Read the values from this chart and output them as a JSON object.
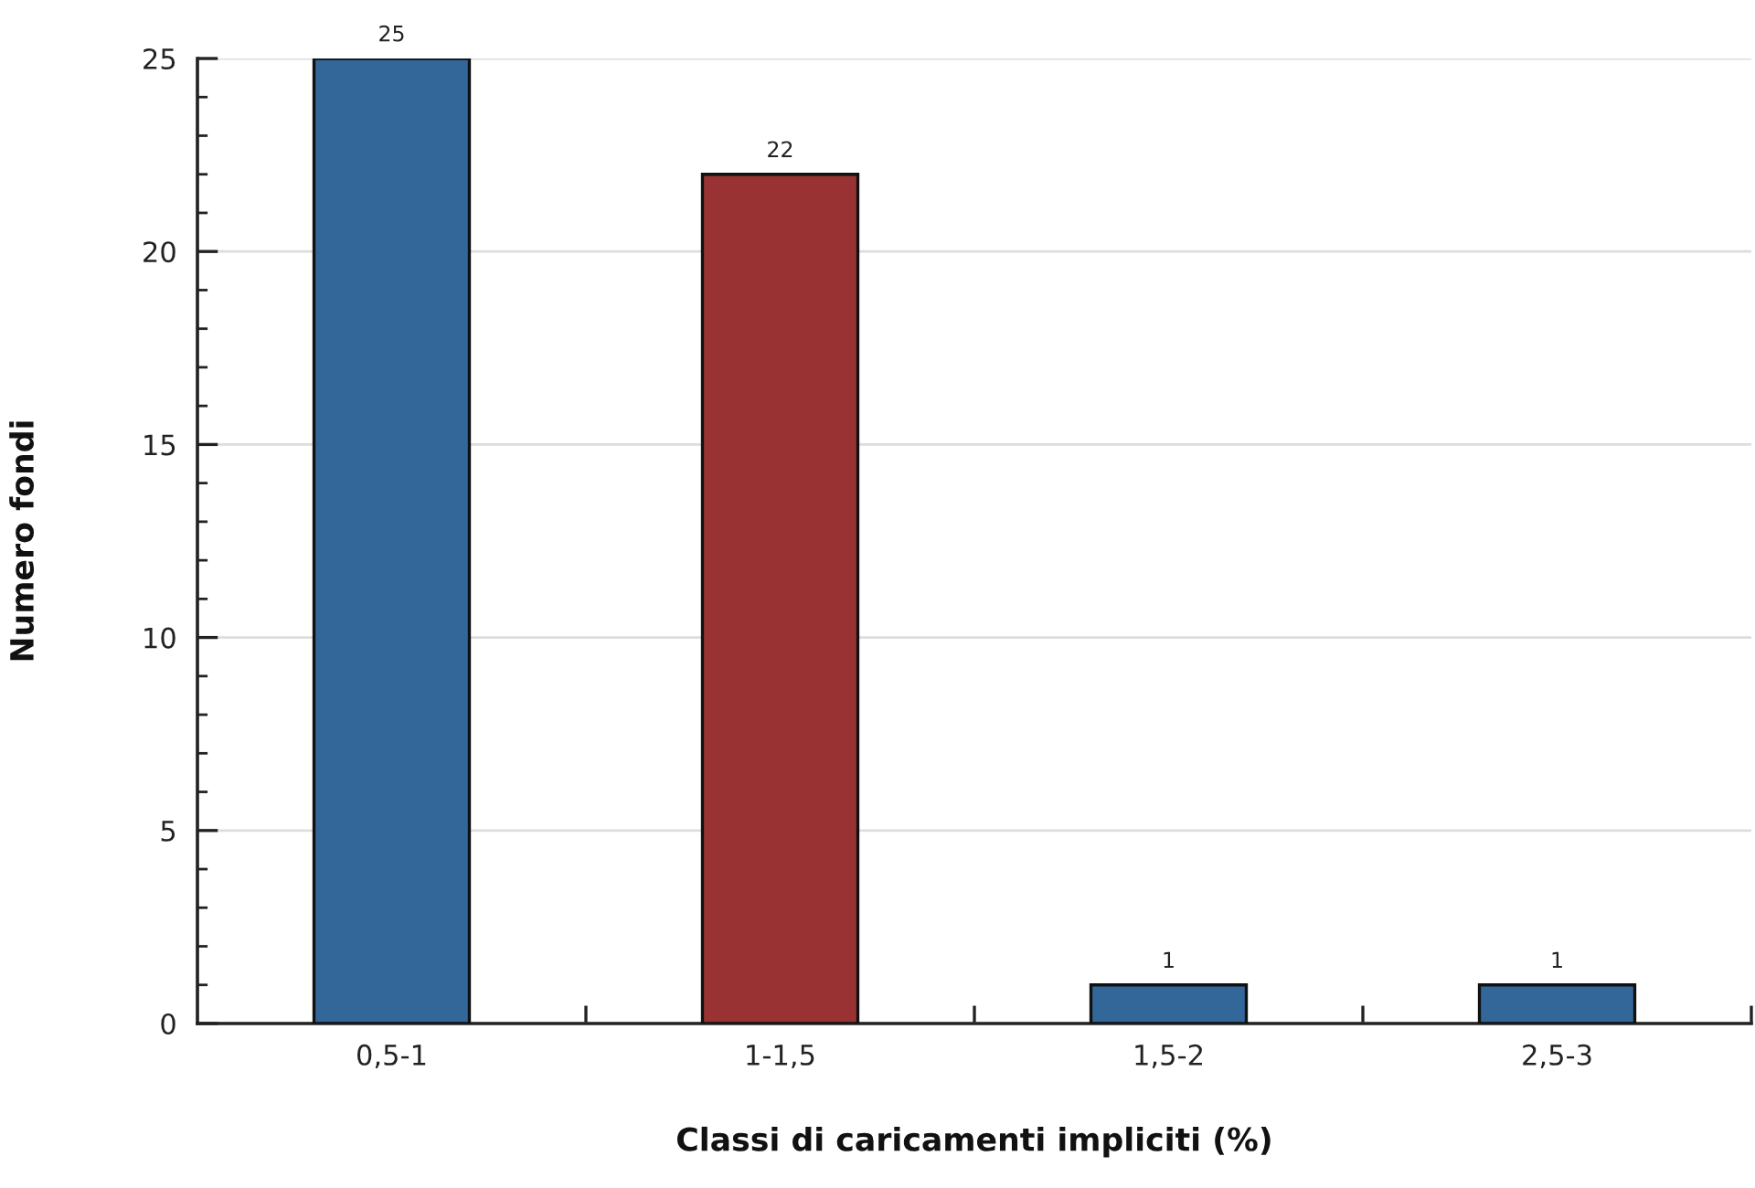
{
  "chart_data": {
    "type": "bar",
    "xlabel": "Classi di caricamenti impliciti (%)",
    "ylabel": "Numero fondi",
    "categories": [
      "0,5-1",
      "1-1,5",
      "1,5-2",
      "2,5-3"
    ],
    "values": [
      25,
      22,
      1,
      1
    ],
    "colors": [
      "#336699",
      "#993333",
      "#336699",
      "#336699"
    ],
    "ylim": [
      0,
      25
    ],
    "yticks": [
      0,
      {
        "value": 1,
        "label": null
      },
      {
        "value": 2,
        "label": null
      },
      {
        "value": 3,
        "label": null
      },
      {
        "value": 4,
        "label": null
      },
      5,
      {
        "value": 6,
        "label": null
      },
      {
        "value": 7,
        "label": null
      },
      {
        "value": 8,
        "label": null
      },
      {
        "value": 9,
        "label": null
      },
      10,
      {
        "value": 11,
        "label": null
      },
      {
        "value": 12,
        "label": null
      },
      {
        "value": 13,
        "label": null
      },
      {
        "value": 14,
        "label": null
      },
      15,
      {
        "value": 16,
        "label": null
      },
      {
        "value": 17,
        "label": null
      },
      {
        "value": 18,
        "label": null
      },
      {
        "value": 19,
        "label": null
      },
      20,
      {
        "value": 21,
        "label": null
      },
      {
        "value": 22,
        "label": null
      },
      {
        "value": 23,
        "label": null
      },
      {
        "value": 24,
        "label": null
      },
      25
    ],
    "grid": "y",
    "data_labels": true
  }
}
